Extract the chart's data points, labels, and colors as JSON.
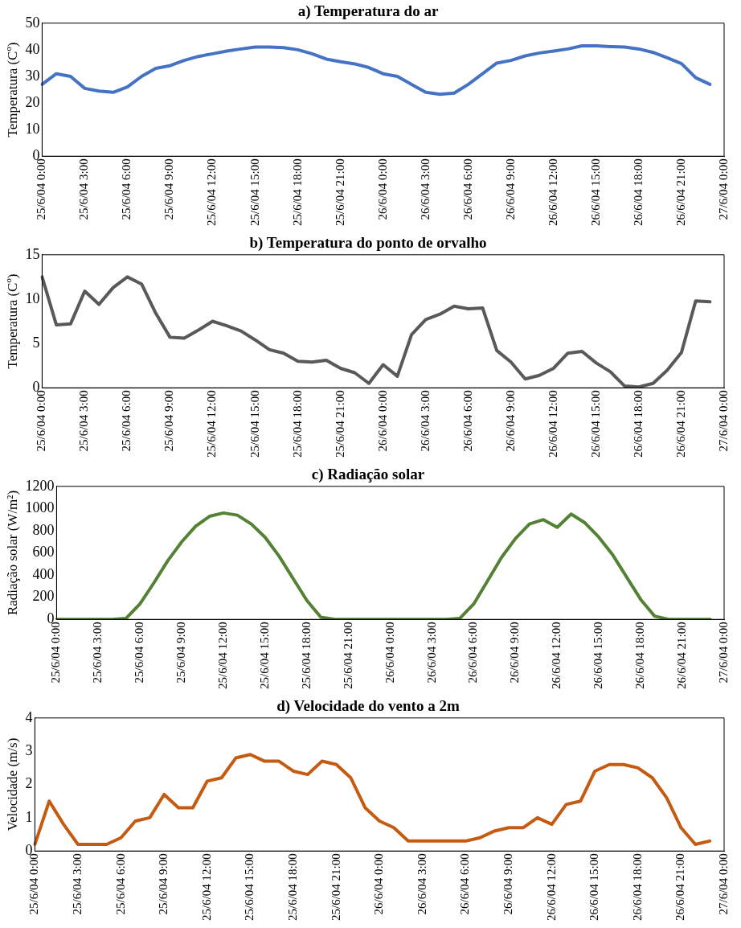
{
  "chart_data": [
    {
      "type": "line",
      "title": "a) Temperatura do ar",
      "ylabel": "Temperatura (Cº)",
      "categories": [
        "25/6/04 0:00",
        null,
        null,
        "25/6/04 3:00",
        null,
        null,
        "25/6/04 6:00",
        null,
        null,
        "25/6/04 9:00",
        null,
        null,
        "25/6/04 12:00",
        null,
        null,
        "25/6/04 15:00",
        null,
        null,
        "25/6/04 18:00",
        null,
        null,
        "25/6/04 21:00",
        null,
        null,
        "26/6/04 0:00",
        null,
        null,
        "26/6/04 3:00",
        null,
        null,
        "26/6/04 6:00",
        null,
        null,
        "26/6/04 9:00",
        null,
        null,
        "26/6/04 12:00",
        null,
        null,
        "26/6/04 15:00",
        null,
        null,
        "26/6/04 18:00",
        null,
        null,
        "26/6/04 21:00",
        null,
        null,
        "27/6/04 0:00"
      ],
      "series": [
        {
          "color": "#4472c4",
          "values": [
            27,
            31,
            30,
            25.5,
            24.5,
            24,
            26,
            30,
            33,
            34,
            36,
            37.5,
            38.5,
            39.5,
            40.3,
            41,
            41,
            40.8,
            40,
            38.5,
            36.5,
            35.5,
            34.7,
            33.3,
            31,
            30,
            27,
            24,
            23.3,
            23.7,
            27,
            31,
            35,
            36,
            37.7,
            38.8,
            39.5,
            40.3,
            41.5,
            41.5,
            41.2,
            41,
            40.3,
            39,
            37,
            34.8,
            29.5,
            27,
            null
          ]
        }
      ],
      "ylim": [
        0,
        50
      ],
      "yticks": [
        0,
        10,
        20,
        30,
        40,
        50
      ],
      "grid": false,
      "legend": false,
      "marker": "none",
      "line_style": "solid"
    },
    {
      "type": "line",
      "title": "b) Temperatura do ponto de orvalho",
      "ylabel": "Temperatura (Cº)",
      "categories": [
        "25/6/04 0:00",
        null,
        null,
        "25/6/04 3:00",
        null,
        null,
        "25/6/04 6:00",
        null,
        null,
        "25/6/04 9:00",
        null,
        null,
        "25/6/04 12:00",
        null,
        null,
        "25/6/04 15:00",
        null,
        null,
        "25/6/04 18:00",
        null,
        null,
        "25/6/04 21:00",
        null,
        null,
        "26/6/04 0:00",
        null,
        null,
        "26/6/04 3:00",
        null,
        null,
        "26/6/04 6:00",
        null,
        null,
        "26/6/04 9:00",
        null,
        null,
        "26/6/04 12:00",
        null,
        null,
        "26/6/04 15:00",
        null,
        null,
        "26/6/04 18:00",
        null,
        null,
        "26/6/04 21:00",
        null,
        null,
        "27/6/04 0:00"
      ],
      "series": [
        {
          "color": "#595959",
          "values": [
            12.5,
            7.1,
            7.2,
            10.9,
            9.4,
            11.3,
            12.5,
            11.7,
            8.4,
            5.7,
            5.6,
            6.5,
            7.5,
            7,
            6.4,
            5.4,
            4.3,
            3.9,
            3,
            2.9,
            3.1,
            2.2,
            1.7,
            0.5,
            2.6,
            1.3,
            6,
            7.7,
            8.3,
            9.2,
            8.9,
            9,
            4.2,
            2.9,
            1,
            1.4,
            2.2,
            3.9,
            4.1,
            2.8,
            1.8,
            0.2,
            0.1,
            0.5,
            2,
            4,
            9.8,
            9.7,
            null
          ]
        }
      ],
      "ylim": [
        0,
        15
      ],
      "yticks": [
        0,
        5,
        10,
        15
      ],
      "grid": false,
      "legend": false,
      "marker": "none",
      "line_style": "solid"
    },
    {
      "type": "line",
      "title": "c) Radiação solar",
      "ylabel": "Radiação solar (W/m²)",
      "categories": [
        "25/6/04 0:00",
        null,
        null,
        "25/6/04 3:00",
        null,
        null,
        "25/6/04 6:00",
        null,
        null,
        "25/6/04 9:00",
        null,
        null,
        "25/6/04 12:00",
        null,
        null,
        "25/6/04 15:00",
        null,
        null,
        "25/6/04 18:00",
        null,
        null,
        "25/6/04 21:00",
        null,
        null,
        "26/6/04 0:00",
        null,
        null,
        "26/6/04 3:00",
        null,
        null,
        "26/6/04 6:00",
        null,
        null,
        "26/6/04 9:00",
        null,
        null,
        "26/6/04 12:00",
        null,
        null,
        "26/6/04 15:00",
        null,
        null,
        "26/6/04 18:00",
        null,
        null,
        "26/6/04 21:00",
        null,
        null,
        "27/6/04 0:00"
      ],
      "series": [
        {
          "color": "#548235",
          "values": [
            0,
            0,
            0,
            0,
            0,
            10,
            140,
            330,
            530,
            700,
            840,
            930,
            960,
            940,
            860,
            740,
            570,
            370,
            170,
            20,
            0,
            0,
            0,
            0,
            0,
            0,
            0,
            0,
            0,
            10,
            140,
            350,
            560,
            730,
            860,
            900,
            830,
            950,
            870,
            740,
            580,
            380,
            180,
            30,
            0,
            0,
            0,
            0,
            null
          ]
        }
      ],
      "ylim": [
        0,
        1200
      ],
      "yticks": [
        0,
        200,
        400,
        600,
        800,
        1000,
        1200
      ],
      "grid": false,
      "legend": false,
      "marker": "none",
      "line_style": "solid"
    },
    {
      "type": "line",
      "title": "d) Velocidade do vento a 2m",
      "ylabel": "Velocidade (m/s)",
      "categories": [
        "25/6/04 0:00",
        null,
        null,
        "25/6/04 3:00",
        null,
        null,
        "25/6/04 6:00",
        null,
        null,
        "25/6/04 9:00",
        null,
        null,
        "25/6/04 12:00",
        null,
        null,
        "25/6/04 15:00",
        null,
        null,
        "25/6/04 18:00",
        null,
        null,
        "25/6/04 21:00",
        null,
        null,
        "26/6/04 0:00",
        null,
        null,
        "26/6/04 3:00",
        null,
        null,
        "26/6/04 6:00",
        null,
        null,
        "26/6/04 9:00",
        null,
        null,
        "26/6/04 12:00",
        null,
        null,
        "26/6/04 15:00",
        null,
        null,
        "26/6/04 18:00",
        null,
        null,
        "26/6/04 21:00",
        null,
        null,
        "27/6/04 0:00"
      ],
      "series": [
        {
          "color": "#c55a11",
          "values": [
            0.2,
            1.5,
            0.8,
            0.2,
            0.2,
            0.2,
            0.4,
            0.9,
            1,
            1.7,
            1.3,
            1.3,
            2.1,
            2.2,
            2.8,
            2.9,
            2.7,
            2.7,
            2.4,
            2.3,
            2.7,
            2.6,
            2.2,
            1.3,
            0.9,
            0.7,
            0.3,
            0.3,
            0.3,
            0.3,
            0.3,
            0.4,
            0.6,
            0.7,
            0.7,
            1,
            0.8,
            1.4,
            1.5,
            2.4,
            2.6,
            2.6,
            2.5,
            2.2,
            1.6,
            0.7,
            0.2,
            0.3,
            null
          ]
        }
      ],
      "ylim": [
        0,
        4
      ],
      "yticks": [
        0,
        1,
        2,
        3,
        4
      ],
      "grid": false,
      "legend": false,
      "marker": "none",
      "line_style": "solid"
    }
  ]
}
